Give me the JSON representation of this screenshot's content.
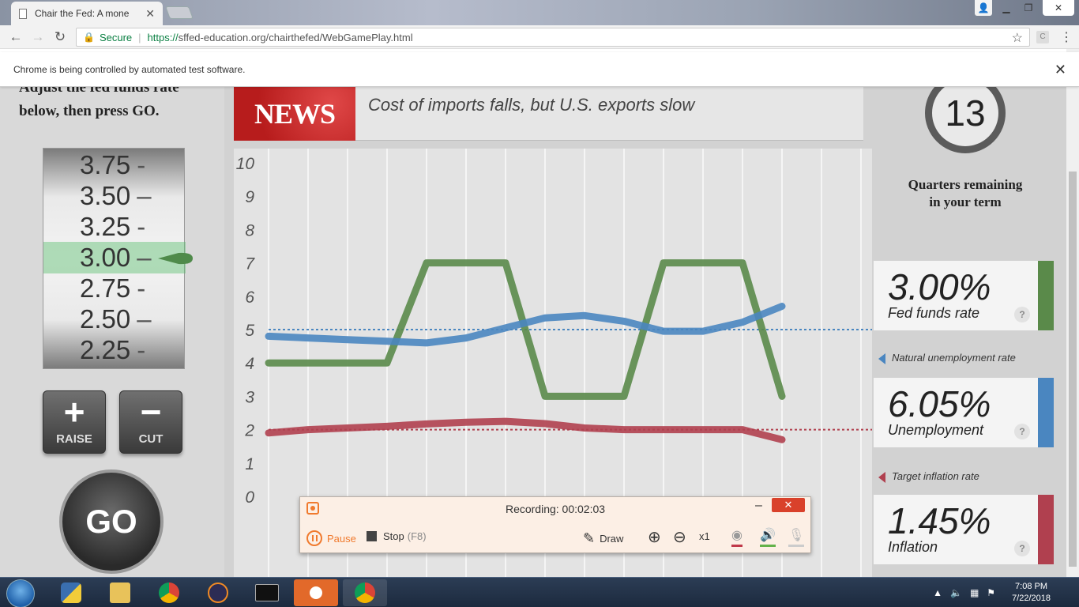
{
  "browser": {
    "tab_title": "Chair the Fed: A mone",
    "secure_label": "Secure",
    "url_prefix": "https://",
    "url_domain": "sffed-education.org",
    "url_path": "/chairthefed/WebGamePlay.html",
    "infobar_text": "Chrome is being controlled by automated test software.",
    "ext_label": "C"
  },
  "game": {
    "instruction_line1": "Adjust the fed funds rate",
    "instruction_line2": "below, then press GO.",
    "dial_ticks": [
      "3.75",
      "3.50",
      "3.25",
      "3.00",
      "2.75",
      "2.50",
      "2.25"
    ],
    "selected_rate": "3.00",
    "raise_label": "RAISE",
    "cut_label": "CUT",
    "plus_symbol": "+",
    "minus_symbol": "−",
    "go_label": "GO",
    "news_badge": "NEWS",
    "news_headline": "Cost of imports falls, but U.S. exports slow",
    "quarters_remaining": "13",
    "quarters_label_line1": "Quarters remaining",
    "quarters_label_line2": "in your term",
    "fed_funds_value": "3.00%",
    "fed_funds_label": "Fed funds rate",
    "natural_unemployment_label": "Natural unemployment rate",
    "unemployment_value": "6.05%",
    "unemployment_label": "Unemployment",
    "target_inflation_label": "Target inflation rate",
    "inflation_value": "1.45%",
    "inflation_label": "Inflation",
    "help_symbol": "?"
  },
  "colors": {
    "green": "#5a8a4a",
    "blue": "#4a86c0",
    "red": "#b0404f"
  },
  "chart_data": {
    "type": "line",
    "ylim": [
      0,
      10
    ],
    "y_ticks": [
      "0",
      "1",
      "2",
      "3",
      "4",
      "5",
      "6",
      "7",
      "8",
      "9",
      "10"
    ],
    "x": [
      0,
      1,
      2,
      3,
      4,
      5,
      6,
      7,
      8,
      9,
      10,
      11,
      12,
      13,
      14
    ],
    "series": [
      {
        "color": "#5a8a4a",
        "values": [
          4.0,
          4.0,
          4.0,
          4.0,
          7.0,
          7.0,
          7.0,
          3.0,
          3.0,
          3.0,
          7.0,
          7.0,
          7.0,
          3.0,
          null
        ],
        "data_x_offset": 0
      },
      {
        "color": "#4a86c0",
        "values": [
          4.8,
          4.75,
          4.7,
          4.65,
          4.6,
          4.75,
          5.05,
          5.35,
          5.42,
          5.25,
          4.95,
          4.95,
          5.22,
          5.7,
          null
        ]
      },
      {
        "color": "#b0404f",
        "values": [
          1.9,
          2.0,
          2.05,
          2.1,
          2.17,
          2.22,
          2.25,
          2.18,
          2.05,
          2.0,
          2.0,
          2.0,
          2.0,
          1.7,
          null
        ]
      }
    ],
    "reference_lines": [
      {
        "label": "Natural unemployment rate",
        "value": 5.0,
        "color": "#4a86c0"
      },
      {
        "label": "Target inflation rate",
        "value": 2.0,
        "color": "#b0404f"
      }
    ]
  },
  "recorder": {
    "title": "Recording:  00:02:03",
    "pause_label": "Pause",
    "stop_label": "Stop",
    "stop_key": "(F8)",
    "draw_label": "Draw",
    "zoom_label": "x1"
  },
  "taskbar": {
    "time": "7:08 PM",
    "date": "7/22/2018"
  }
}
